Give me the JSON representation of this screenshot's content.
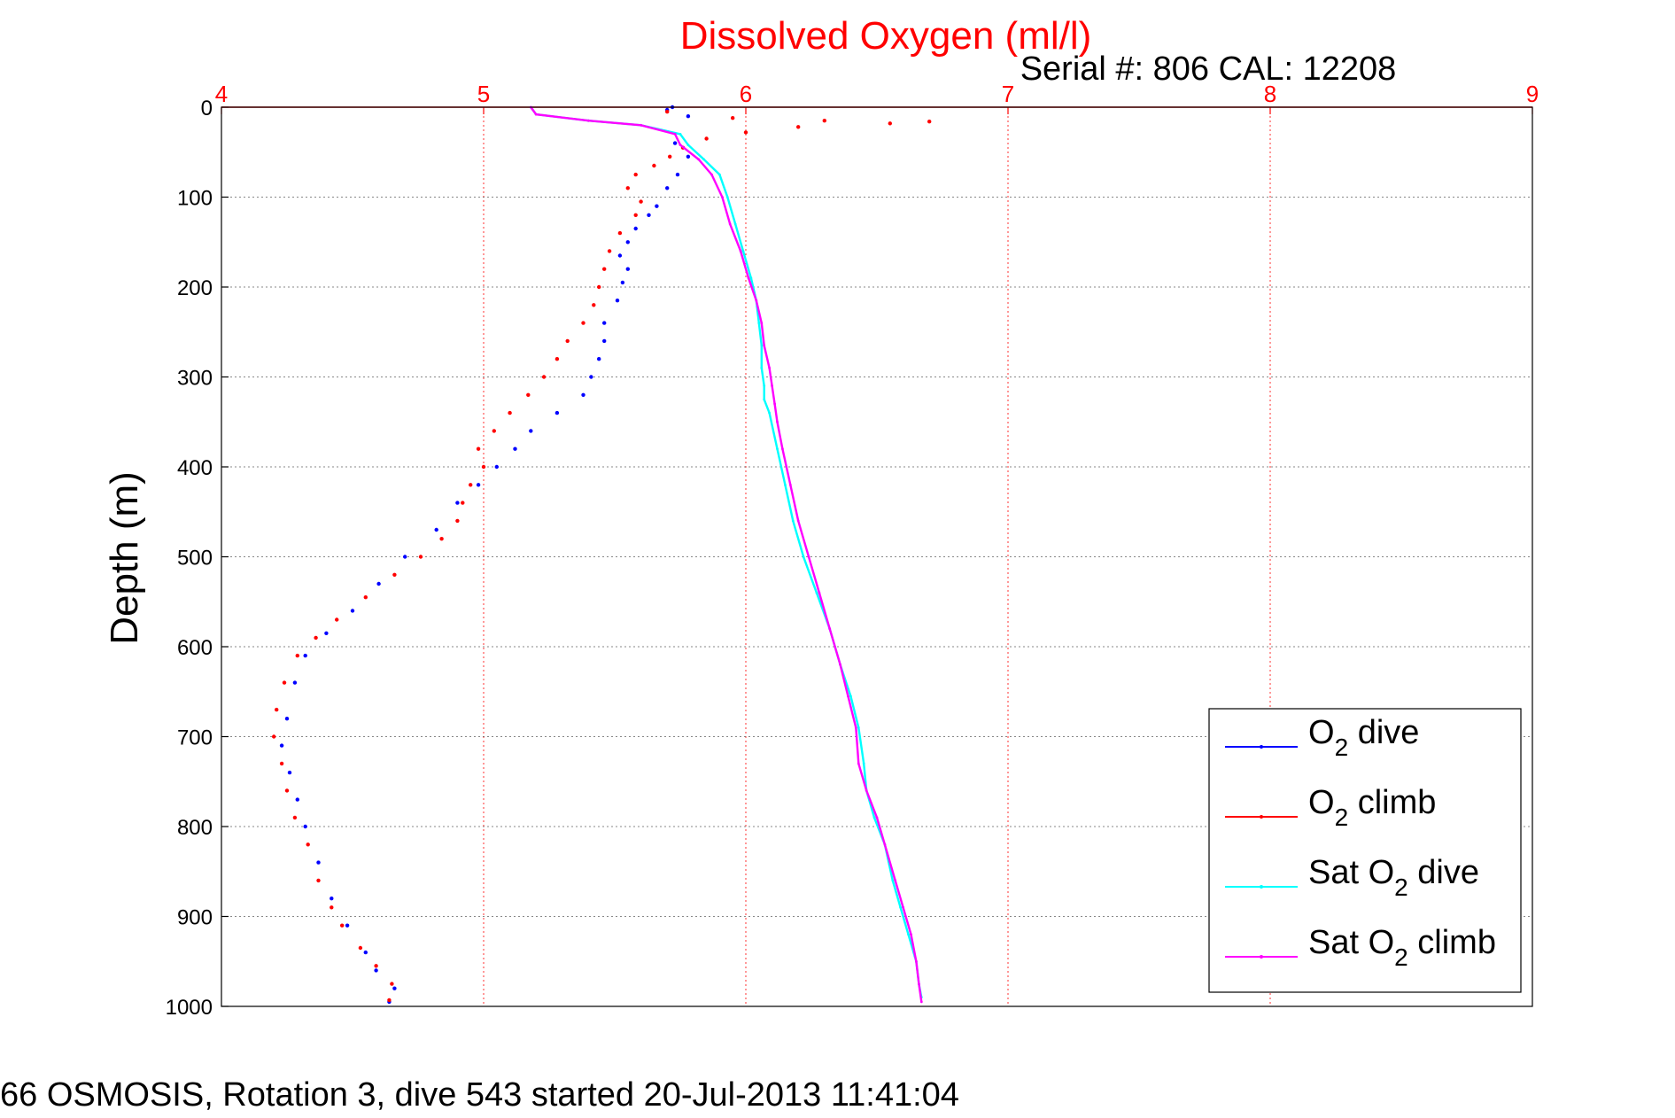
{
  "chart_data": {
    "type": "scatter",
    "title": "Dissolved Oxygen (ml/l)",
    "subtitle": "Serial #: 806  CAL: 12208",
    "ylabel": "Depth (m)",
    "footer": "66 OSMOSIS, Rotation 3, dive 543 started 20-Jul-2013 11:41:04",
    "xlim": [
      4,
      9
    ],
    "ylim": [
      1000,
      0
    ],
    "x_ticks": [
      "4",
      "5",
      "6",
      "7",
      "8",
      "9"
    ],
    "y_ticks": [
      "0",
      "100",
      "200",
      "300",
      "400",
      "500",
      "600",
      "700",
      "800",
      "900",
      "1000"
    ],
    "grid": true,
    "x_axis_position": "top",
    "legend_position": "bottom-right",
    "colors": {
      "o2_dive": "#0000ff",
      "o2_climb": "#ff0000",
      "sat_dive": "#00ffff",
      "sat_climb": "#ff00ff",
      "title": "#ff0000",
      "x_ticks": "#ff0000",
      "grid": "#bbbbbb"
    },
    "legend": {
      "o2_dive": {
        "prefix": "O",
        "sub": "2",
        "suffix": " dive"
      },
      "o2_climb": {
        "prefix": "O",
        "sub": "2",
        "suffix": " climb"
      },
      "sat_dive": {
        "prefix": "Sat O",
        "sub": "2",
        "suffix": " dive"
      },
      "sat_climb": {
        "prefix": "Sat O",
        "sub": "2",
        "suffix": " climb"
      }
    },
    "series": [
      {
        "key": "o2_dive",
        "style": "dots",
        "points": [
          [
            5.72,
            0
          ],
          [
            5.7,
            3
          ],
          [
            5.78,
            10
          ],
          [
            5.73,
            40
          ],
          [
            5.78,
            55
          ],
          [
            5.74,
            75
          ],
          [
            5.7,
            90
          ],
          [
            5.66,
            110
          ],
          [
            5.63,
            120
          ],
          [
            5.58,
            135
          ],
          [
            5.55,
            150
          ],
          [
            5.52,
            165
          ],
          [
            5.55,
            180
          ],
          [
            5.53,
            195
          ],
          [
            5.51,
            215
          ],
          [
            5.46,
            240
          ],
          [
            5.46,
            260
          ],
          [
            5.44,
            280
          ],
          [
            5.41,
            300
          ],
          [
            5.38,
            320
          ],
          [
            5.28,
            340
          ],
          [
            5.18,
            360
          ],
          [
            5.12,
            380
          ],
          [
            5.05,
            400
          ],
          [
            4.98,
            420
          ],
          [
            4.9,
            440
          ],
          [
            4.82,
            470
          ],
          [
            4.7,
            500
          ],
          [
            4.6,
            530
          ],
          [
            4.5,
            560
          ],
          [
            4.4,
            585
          ],
          [
            4.32,
            610
          ],
          [
            4.28,
            640
          ],
          [
            4.25,
            680
          ],
          [
            4.23,
            710
          ],
          [
            4.26,
            740
          ],
          [
            4.29,
            770
          ],
          [
            4.32,
            800
          ],
          [
            4.37,
            840
          ],
          [
            4.42,
            880
          ],
          [
            4.48,
            910
          ],
          [
            4.55,
            940
          ],
          [
            4.59,
            960
          ],
          [
            4.66,
            980
          ],
          [
            4.64,
            995
          ]
        ]
      },
      {
        "key": "o2_climb",
        "style": "dots",
        "points": [
          [
            5.7,
            5
          ],
          [
            5.95,
            12
          ],
          [
            6.3,
            15
          ],
          [
            6.7,
            16
          ],
          [
            6.55,
            18
          ],
          [
            6.2,
            22
          ],
          [
            6.0,
            28
          ],
          [
            5.85,
            35
          ],
          [
            5.76,
            45
          ],
          [
            5.71,
            55
          ],
          [
            5.65,
            65
          ],
          [
            5.58,
            75
          ],
          [
            5.55,
            90
          ],
          [
            5.6,
            105
          ],
          [
            5.58,
            120
          ],
          [
            5.52,
            140
          ],
          [
            5.48,
            160
          ],
          [
            5.46,
            180
          ],
          [
            5.44,
            200
          ],
          [
            5.42,
            220
          ],
          [
            5.38,
            240
          ],
          [
            5.32,
            260
          ],
          [
            5.28,
            280
          ],
          [
            5.23,
            300
          ],
          [
            5.17,
            320
          ],
          [
            5.1,
            340
          ],
          [
            5.04,
            360
          ],
          [
            4.98,
            380
          ],
          [
            5.0,
            400
          ],
          [
            4.95,
            420
          ],
          [
            4.92,
            440
          ],
          [
            4.9,
            460
          ],
          [
            4.84,
            480
          ],
          [
            4.76,
            500
          ],
          [
            4.66,
            520
          ],
          [
            4.55,
            545
          ],
          [
            4.44,
            570
          ],
          [
            4.36,
            590
          ],
          [
            4.29,
            610
          ],
          [
            4.24,
            640
          ],
          [
            4.21,
            670
          ],
          [
            4.2,
            700
          ],
          [
            4.23,
            730
          ],
          [
            4.25,
            760
          ],
          [
            4.28,
            790
          ],
          [
            4.33,
            820
          ],
          [
            4.37,
            860
          ],
          [
            4.42,
            890
          ],
          [
            4.46,
            910
          ],
          [
            4.53,
            935
          ],
          [
            4.59,
            955
          ],
          [
            4.65,
            975
          ],
          [
            4.64,
            993
          ]
        ]
      },
      {
        "key": "sat_dive",
        "style": "line",
        "points": [
          [
            5.18,
            0
          ],
          [
            5.2,
            8
          ],
          [
            5.4,
            15
          ],
          [
            5.6,
            20
          ],
          [
            5.75,
            30
          ],
          [
            5.78,
            42
          ],
          [
            5.84,
            58
          ],
          [
            5.9,
            75
          ],
          [
            5.93,
            100
          ],
          [
            5.96,
            130
          ],
          [
            5.99,
            160
          ],
          [
            6.02,
            190
          ],
          [
            6.04,
            215
          ],
          [
            6.05,
            240
          ],
          [
            6.06,
            265
          ],
          [
            6.06,
            290
          ],
          [
            6.07,
            310
          ],
          [
            6.07,
            325
          ],
          [
            6.09,
            340
          ],
          [
            6.12,
            380
          ],
          [
            6.15,
            420
          ],
          [
            6.18,
            460
          ],
          [
            6.22,
            500
          ],
          [
            6.27,
            540
          ],
          [
            6.32,
            580
          ],
          [
            6.36,
            620
          ],
          [
            6.4,
            655
          ],
          [
            6.43,
            690
          ],
          [
            6.45,
            730
          ],
          [
            6.46,
            760
          ],
          [
            6.49,
            790
          ],
          [
            6.53,
            820
          ],
          [
            6.56,
            860
          ],
          [
            6.59,
            890
          ],
          [
            6.62,
            920
          ],
          [
            6.65,
            950
          ],
          [
            6.66,
            975
          ],
          [
            6.67,
            990
          ]
        ]
      },
      {
        "key": "sat_climb",
        "style": "line",
        "points": [
          [
            5.18,
            0
          ],
          [
            5.2,
            8
          ],
          [
            5.4,
            15
          ],
          [
            5.6,
            20
          ],
          [
            5.73,
            30
          ],
          [
            5.75,
            42
          ],
          [
            5.82,
            58
          ],
          [
            5.87,
            75
          ],
          [
            5.91,
            100
          ],
          [
            5.94,
            130
          ],
          [
            5.98,
            160
          ],
          [
            6.01,
            190
          ],
          [
            6.04,
            215
          ],
          [
            6.06,
            240
          ],
          [
            6.07,
            265
          ],
          [
            6.09,
            290
          ],
          [
            6.1,
            310
          ],
          [
            6.11,
            330
          ],
          [
            6.12,
            350
          ],
          [
            6.14,
            380
          ],
          [
            6.17,
            420
          ],
          [
            6.2,
            460
          ],
          [
            6.24,
            500
          ],
          [
            6.28,
            540
          ],
          [
            6.32,
            580
          ],
          [
            6.36,
            620
          ],
          [
            6.39,
            655
          ],
          [
            6.42,
            690
          ],
          [
            6.43,
            730
          ],
          [
            6.46,
            760
          ],
          [
            6.5,
            790
          ],
          [
            6.53,
            820
          ],
          [
            6.57,
            860
          ],
          [
            6.6,
            890
          ],
          [
            6.63,
            920
          ],
          [
            6.65,
            950
          ],
          [
            6.66,
            975
          ],
          [
            6.67,
            995
          ]
        ]
      }
    ]
  }
}
